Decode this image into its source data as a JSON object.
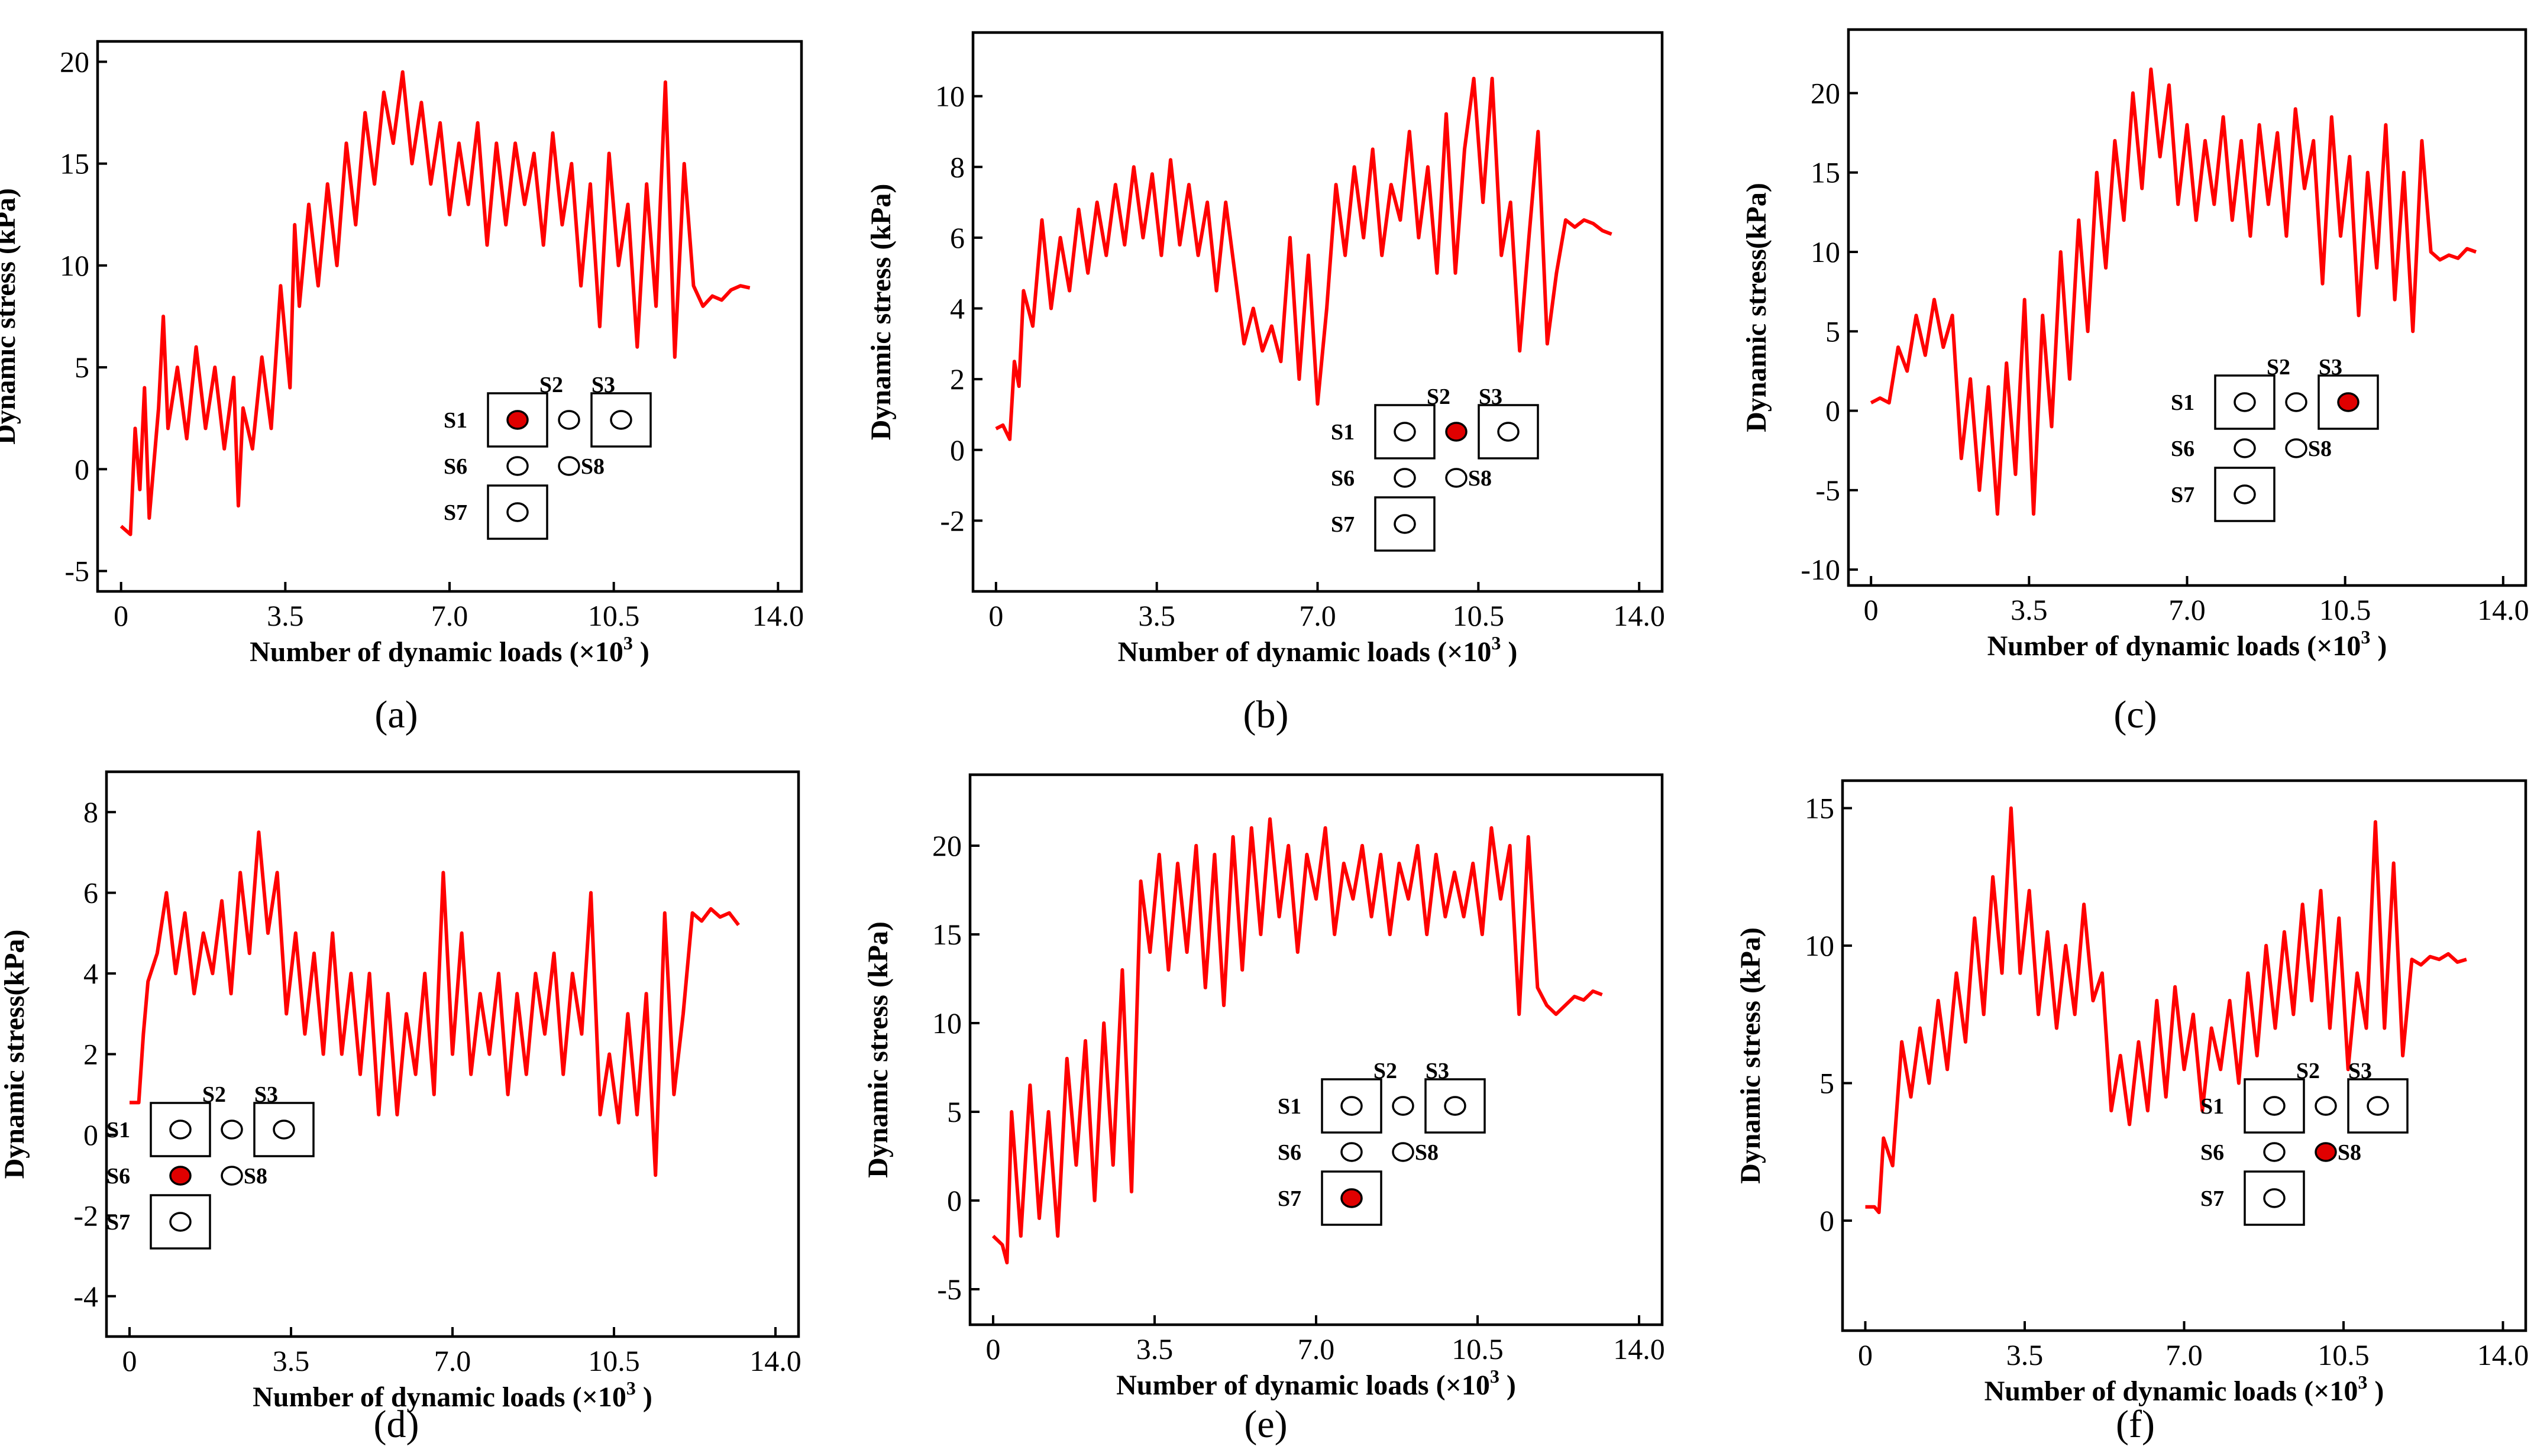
{
  "figure": {
    "series_color": "#ff0000",
    "active_sensor_color": "#e00000",
    "inset_sensor_labels": [
      "S1",
      "S2",
      "S3",
      "S6",
      "S7",
      "S8"
    ]
  },
  "chart_data": [
    {
      "panel": "(a)",
      "type": "line",
      "xlabel": "Number of dynamic loads (×10",
      "xlabel_exp": "3",
      "xlabel_close": ")",
      "ylabel": "Dynamic stress (kPa)",
      "xlim": [
        -0.5,
        14.5
      ],
      "ylim": [
        -6,
        21
      ],
      "xticks": [
        0,
        3.5,
        7.0,
        10.5,
        14.0
      ],
      "xtick_labels": [
        "0",
        "3.5",
        "7.0",
        "10.5",
        "14.0"
      ],
      "yticks": [
        -5,
        0,
        5,
        10,
        15,
        20
      ],
      "ytick_labels": [
        "-5",
        "0",
        "5",
        "10",
        "15",
        "20"
      ],
      "active_sensor": "S1",
      "series": [
        {
          "name": "S1",
          "x": [
            0,
            0.2,
            0.3,
            0.4,
            0.5,
            0.6,
            0.8,
            0.9,
            1.0,
            1.2,
            1.4,
            1.6,
            1.8,
            2.0,
            2.2,
            2.4,
            2.5,
            2.6,
            2.8,
            3.0,
            3.2,
            3.4,
            3.6,
            3.7,
            3.8,
            4.0,
            4.2,
            4.4,
            4.6,
            4.8,
            5.0,
            5.2,
            5.4,
            5.6,
            5.8,
            6.0,
            6.2,
            6.4,
            6.6,
            6.8,
            7.0,
            7.2,
            7.4,
            7.6,
            7.8,
            8.0,
            8.2,
            8.4,
            8.6,
            8.8,
            9.0,
            9.2,
            9.4,
            9.6,
            9.8,
            10.0,
            10.2,
            10.4,
            10.6,
            10.8,
            11.0,
            11.2,
            11.4,
            11.6,
            11.8,
            12.0,
            12.2,
            12.4,
            12.6,
            12.8,
            13.0,
            13.2,
            13.4
          ],
          "values": [
            -2.8,
            -3.2,
            2.0,
            -1.0,
            4.0,
            -2.4,
            3.0,
            7.5,
            2.0,
            5.0,
            1.5,
            6.0,
            2.0,
            5.0,
            1.0,
            4.5,
            -1.8,
            3.0,
            1.0,
            5.5,
            2.0,
            9.0,
            4.0,
            12.0,
            8.0,
            13.0,
            9.0,
            14.0,
            10.0,
            16.0,
            12.0,
            17.5,
            14.0,
            18.5,
            16.0,
            19.5,
            15.0,
            18.0,
            14.0,
            17.0,
            12.5,
            16.0,
            13.0,
            17.0,
            11.0,
            16.0,
            12.0,
            16.0,
            13.0,
            15.5,
            11.0,
            16.5,
            12.0,
            15.0,
            9.0,
            14.0,
            7.0,
            15.5,
            10.0,
            13.0,
            6.0,
            14.0,
            8.0,
            19.0,
            5.5,
            15.0,
            9.0,
            8.0,
            8.5,
            8.3,
            8.8,
            9.0,
            8.9
          ]
        }
      ]
    },
    {
      "panel": "(b)",
      "type": "line",
      "xlabel": "Number of dynamic loads (×10",
      "xlabel_exp": "3",
      "xlabel_close": ")",
      "ylabel": "Dynamic stress (kPa)",
      "xlim": [
        -0.5,
        14.5
      ],
      "ylim": [
        -4,
        11.8
      ],
      "xticks": [
        0,
        3.5,
        7.0,
        10.5,
        14.0
      ],
      "xtick_labels": [
        "0",
        "3.5",
        "7.0",
        "10.5",
        "14.0"
      ],
      "yticks": [
        -2,
        0,
        2,
        4,
        6,
        8,
        10
      ],
      "ytick_labels": [
        "-2",
        "0",
        "2",
        "4",
        "6",
        "8",
        "10"
      ],
      "active_sensor": "S2",
      "series": [
        {
          "name": "S2",
          "x": [
            0,
            0.15,
            0.3,
            0.4,
            0.5,
            0.6,
            0.8,
            1.0,
            1.2,
            1.4,
            1.6,
            1.8,
            2.0,
            2.2,
            2.4,
            2.6,
            2.8,
            3.0,
            3.2,
            3.4,
            3.6,
            3.8,
            4.0,
            4.2,
            4.4,
            4.6,
            4.8,
            5.0,
            5.2,
            5.4,
            5.6,
            5.8,
            6.0,
            6.2,
            6.4,
            6.6,
            6.8,
            7.0,
            7.2,
            7.4,
            7.6,
            7.8,
            8.0,
            8.2,
            8.4,
            8.6,
            8.8,
            9.0,
            9.2,
            9.4,
            9.6,
            9.8,
            10.0,
            10.2,
            10.4,
            10.6,
            10.8,
            11.0,
            11.2,
            11.4,
            11.6,
            11.8,
            12.0,
            12.2,
            12.4,
            12.6,
            12.8,
            13.0,
            13.2,
            13.4
          ],
          "values": [
            0.6,
            0.7,
            0.3,
            2.5,
            1.8,
            4.5,
            3.5,
            6.5,
            4.0,
            6.0,
            4.5,
            6.8,
            5.0,
            7.0,
            5.5,
            7.5,
            5.8,
            8.0,
            6.0,
            7.8,
            5.5,
            8.2,
            5.8,
            7.5,
            5.5,
            7.0,
            4.5,
            7.0,
            5.0,
            3.0,
            4.0,
            2.8,
            3.5,
            2.5,
            6.0,
            2.0,
            5.5,
            1.3,
            4.0,
            7.5,
            5.5,
            8.0,
            6.0,
            8.5,
            5.5,
            7.5,
            6.5,
            9.0,
            6.0,
            8.0,
            5.0,
            9.5,
            5.0,
            8.5,
            10.5,
            7.0,
            10.5,
            5.5,
            7.0,
            2.8,
            6.0,
            9.0,
            3.0,
            5.0,
            6.5,
            6.3,
            6.5,
            6.4,
            6.2,
            6.1
          ]
        }
      ]
    },
    {
      "panel": "(c)",
      "type": "line",
      "xlabel": "Number of dynamic loads (×10",
      "xlabel_exp": "3",
      "xlabel_close": ")",
      "ylabel": "Dynamic stress(kPa)",
      "xlim": [
        -0.5,
        14.5
      ],
      "ylim": [
        -11,
        24
      ],
      "xticks": [
        0,
        3.5,
        7.0,
        10.5,
        14.0
      ],
      "xtick_labels": [
        "0",
        "3.5",
        "7.0",
        "10.5",
        "14.0"
      ],
      "yticks": [
        -10,
        -5,
        0,
        5,
        10,
        15,
        20
      ],
      "ytick_labels": [
        "-10",
        "-5",
        "0",
        "5",
        "10",
        "15",
        "20"
      ],
      "active_sensor": "S3",
      "series": [
        {
          "name": "S3",
          "x": [
            0,
            0.2,
            0.4,
            0.6,
            0.8,
            1.0,
            1.2,
            1.4,
            1.6,
            1.8,
            2.0,
            2.2,
            2.4,
            2.6,
            2.8,
            3.0,
            3.2,
            3.4,
            3.6,
            3.8,
            4.0,
            4.2,
            4.4,
            4.6,
            4.8,
            5.0,
            5.2,
            5.4,
            5.6,
            5.8,
            6.0,
            6.2,
            6.4,
            6.6,
            6.8,
            7.0,
            7.2,
            7.4,
            7.6,
            7.8,
            8.0,
            8.2,
            8.4,
            8.6,
            8.8,
            9.0,
            9.2,
            9.4,
            9.6,
            9.8,
            10.0,
            10.2,
            10.4,
            10.6,
            10.8,
            11.0,
            11.2,
            11.4,
            11.6,
            11.8,
            12.0,
            12.2,
            12.4,
            12.6,
            12.8,
            13.0,
            13.2,
            13.4
          ],
          "values": [
            0.5,
            0.8,
            0.5,
            4.0,
            2.5,
            6.0,
            3.5,
            7.0,
            4.0,
            6.0,
            -3.0,
            2.0,
            -5.0,
            1.5,
            -6.5,
            3.0,
            -4.0,
            7.0,
            -6.5,
            6.0,
            -1.0,
            10.0,
            2.0,
            12.0,
            5.0,
            15.0,
            9.0,
            17.0,
            12.0,
            20.0,
            14.0,
            21.5,
            16.0,
            20.5,
            13.0,
            18.0,
            12.0,
            17.0,
            13.0,
            18.5,
            12.0,
            17.0,
            11.0,
            18.0,
            13.0,
            17.5,
            11.0,
            19.0,
            14.0,
            17.0,
            8.0,
            18.5,
            11.0,
            16.0,
            6.0,
            15.0,
            9.0,
            18.0,
            7.0,
            15.0,
            5.0,
            17.0,
            10.0,
            9.5,
            9.8,
            9.6,
            10.2,
            10.0
          ]
        }
      ]
    },
    {
      "panel": "(d)",
      "type": "line",
      "xlabel": "Number of dynamic loads (×10",
      "xlabel_exp": "3",
      "xlabel_close": ")",
      "ylabel": "Dynamic stress(kPa)",
      "xlim": [
        -0.5,
        14.5
      ],
      "ylim": [
        -5,
        9
      ],
      "xticks": [
        0,
        3.5,
        7.0,
        10.5,
        14.0
      ],
      "xtick_labels": [
        "0",
        "3.5",
        "7.0",
        "10.5",
        "14.0"
      ],
      "yticks": [
        -4,
        -2,
        0,
        2,
        4,
        6,
        8
      ],
      "ytick_labels": [
        "-4",
        "-2",
        "0",
        "2",
        "4",
        "6",
        "8"
      ],
      "active_sensor": "S6",
      "series": [
        {
          "name": "S6",
          "x": [
            0,
            0.2,
            0.3,
            0.4,
            0.6,
            0.8,
            1.0,
            1.2,
            1.4,
            1.6,
            1.8,
            2.0,
            2.2,
            2.4,
            2.6,
            2.8,
            3.0,
            3.2,
            3.4,
            3.6,
            3.8,
            4.0,
            4.2,
            4.4,
            4.6,
            4.8,
            5.0,
            5.2,
            5.4,
            5.6,
            5.8,
            6.0,
            6.2,
            6.4,
            6.6,
            6.8,
            7.0,
            7.2,
            7.4,
            7.6,
            7.8,
            8.0,
            8.2,
            8.4,
            8.6,
            8.8,
            9.0,
            9.2,
            9.4,
            9.6,
            9.8,
            10.0,
            10.2,
            10.4,
            10.6,
            10.8,
            11.0,
            11.2,
            11.4,
            11.6,
            11.8,
            12.0,
            12.2,
            12.4,
            12.6,
            12.8,
            13.0,
            13.2
          ],
          "values": [
            0.8,
            0.8,
            2.5,
            3.8,
            4.5,
            6.0,
            4.0,
            5.5,
            3.5,
            5.0,
            4.0,
            5.8,
            3.5,
            6.5,
            4.5,
            7.5,
            5.0,
            6.5,
            3.0,
            5.0,
            2.5,
            4.5,
            2.0,
            5.0,
            2.0,
            4.0,
            1.5,
            4.0,
            0.5,
            3.5,
            0.5,
            3.0,
            1.5,
            4.0,
            1.0,
            6.5,
            2.0,
            5.0,
            1.5,
            3.5,
            2.0,
            4.0,
            1.0,
            3.5,
            1.5,
            4.0,
            2.5,
            4.5,
            1.5,
            4.0,
            2.5,
            6.0,
            0.5,
            2.0,
            0.3,
            3.0,
            0.5,
            3.5,
            -1.0,
            5.5,
            1.0,
            3.0,
            5.5,
            5.3,
            5.6,
            5.4,
            5.5,
            5.2
          ]
        }
      ]
    },
    {
      "panel": "(e)",
      "type": "line",
      "xlabel": "Number of dynamic loads (×10",
      "xlabel_exp": "3",
      "xlabel_close": ")",
      "ylabel": "Dynamic stress (kPa)",
      "xlim": [
        -0.5,
        14.5
      ],
      "ylim": [
        -7,
        24
      ],
      "xticks": [
        0,
        3.5,
        7.0,
        10.5,
        14.0
      ],
      "xtick_labels": [
        "0",
        "3.5",
        "7.0",
        "10.5",
        "14.0"
      ],
      "yticks": [
        -5,
        0,
        5,
        10,
        15,
        20
      ],
      "ytick_labels": [
        "-5",
        "0",
        "5",
        "10",
        "15",
        "20"
      ],
      "active_sensor": "S7",
      "series": [
        {
          "name": "S7",
          "x": [
            0,
            0.2,
            0.3,
            0.4,
            0.6,
            0.8,
            1.0,
            1.2,
            1.4,
            1.6,
            1.8,
            2.0,
            2.2,
            2.4,
            2.6,
            2.8,
            3.0,
            3.2,
            3.4,
            3.6,
            3.8,
            4.0,
            4.2,
            4.4,
            4.6,
            4.8,
            5.0,
            5.2,
            5.4,
            5.6,
            5.8,
            6.0,
            6.2,
            6.4,
            6.6,
            6.8,
            7.0,
            7.2,
            7.4,
            7.6,
            7.8,
            8.0,
            8.2,
            8.4,
            8.6,
            8.8,
            9.0,
            9.2,
            9.4,
            9.6,
            9.8,
            10.0,
            10.2,
            10.4,
            10.6,
            10.8,
            11.0,
            11.2,
            11.4,
            11.6,
            11.8,
            12.0,
            12.2,
            12.4,
            12.6,
            12.8,
            13.0,
            13.2
          ],
          "values": [
            -2.0,
            -2.5,
            -3.5,
            5.0,
            -2.0,
            6.5,
            -1.0,
            5.0,
            -2.0,
            8.0,
            2.0,
            9.0,
            0.0,
            10.0,
            2.0,
            13.0,
            0.5,
            18.0,
            14.0,
            19.5,
            13.0,
            19.0,
            14.0,
            20.0,
            12.0,
            19.5,
            11.0,
            20.5,
            13.0,
            21.0,
            15.0,
            21.5,
            16.0,
            20.0,
            14.0,
            19.5,
            17.0,
            21.0,
            15.0,
            19.0,
            17.0,
            20.0,
            16.0,
            19.5,
            15.0,
            19.0,
            17.0,
            20.0,
            15.0,
            19.5,
            16.0,
            18.5,
            16.0,
            19.0,
            15.0,
            21.0,
            17.0,
            20.0,
            10.5,
            20.5,
            12.0,
            11.0,
            10.5,
            11.0,
            11.5,
            11.3,
            11.8,
            11.6
          ]
        }
      ]
    },
    {
      "panel": "(f)",
      "type": "line",
      "xlabel": "Number of dynamic loads (×10",
      "xlabel_exp": "3",
      "xlabel_close": ")",
      "ylabel": "Dynamic stress (kPa)",
      "xlim": [
        -0.5,
        14.5
      ],
      "ylim": [
        -4,
        16
      ],
      "xticks": [
        0,
        3.5,
        7.0,
        10.5,
        14.0
      ],
      "xtick_labels": [
        "0",
        "3.5",
        "7.0",
        "10.5",
        "14.0"
      ],
      "yticks": [
        0,
        5,
        10,
        15
      ],
      "ytick_labels": [
        "0",
        "5",
        "10",
        "15"
      ],
      "active_sensor": "S8",
      "series": [
        {
          "name": "S8",
          "x": [
            0,
            0.2,
            0.3,
            0.4,
            0.6,
            0.8,
            1.0,
            1.2,
            1.4,
            1.6,
            1.8,
            2.0,
            2.2,
            2.4,
            2.6,
            2.8,
            3.0,
            3.2,
            3.4,
            3.6,
            3.8,
            4.0,
            4.2,
            4.4,
            4.6,
            4.8,
            5.0,
            5.2,
            5.4,
            5.6,
            5.8,
            6.0,
            6.2,
            6.4,
            6.6,
            6.8,
            7.0,
            7.2,
            7.4,
            7.6,
            7.8,
            8.0,
            8.2,
            8.4,
            8.6,
            8.8,
            9.0,
            9.2,
            9.4,
            9.6,
            9.8,
            10.0,
            10.2,
            10.4,
            10.6,
            10.8,
            11.0,
            11.2,
            11.4,
            11.6,
            11.8,
            12.0,
            12.2,
            12.4,
            12.6,
            12.8,
            13.0,
            13.2
          ],
          "values": [
            0.5,
            0.5,
            0.3,
            3.0,
            2.0,
            6.5,
            4.5,
            7.0,
            5.0,
            8.0,
            5.5,
            9.0,
            6.5,
            11.0,
            7.5,
            12.5,
            9.0,
            15.0,
            9.0,
            12.0,
            7.5,
            10.5,
            7.0,
            10.0,
            7.5,
            11.5,
            8.0,
            9.0,
            4.0,
            6.0,
            3.5,
            6.5,
            4.0,
            8.0,
            4.5,
            8.5,
            5.5,
            7.5,
            4.0,
            7.0,
            5.5,
            8.0,
            5.0,
            9.0,
            6.0,
            10.0,
            7.0,
            10.5,
            7.5,
            11.5,
            8.0,
            12.0,
            7.0,
            11.0,
            5.5,
            9.0,
            7.0,
            14.5,
            7.0,
            13.0,
            6.0,
            9.5,
            9.3,
            9.6,
            9.5,
            9.7,
            9.4,
            9.5
          ]
        }
      ]
    }
  ]
}
